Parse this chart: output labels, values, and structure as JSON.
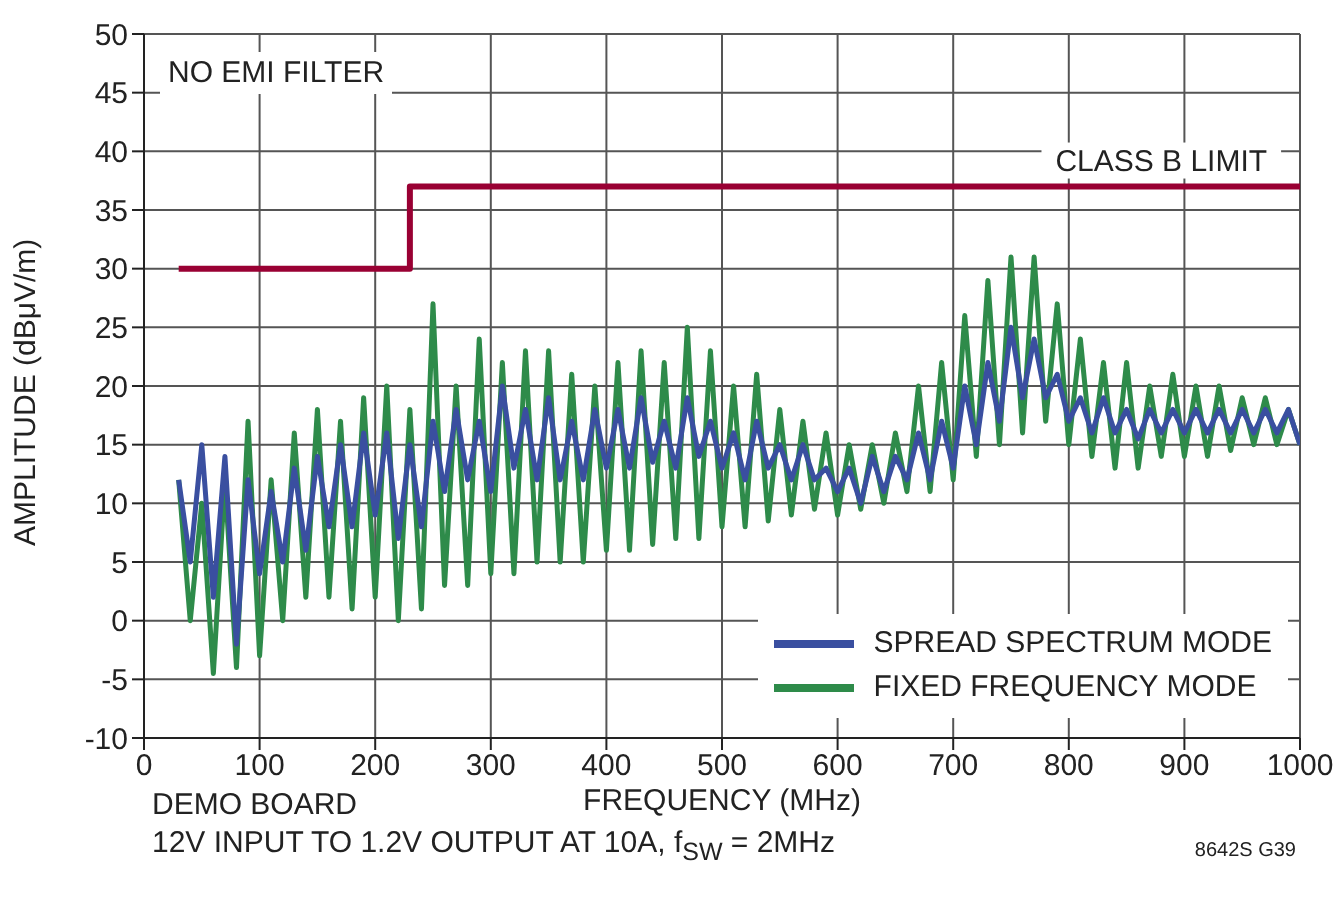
{
  "chart_data": {
    "type": "line",
    "xlabel": "FREQUENCY (MHz)",
    "ylabel": "AMPLITUDE (dBμV/m)",
    "xlim": [
      0,
      1000
    ],
    "xticks": [
      0,
      100,
      200,
      300,
      400,
      500,
      600,
      700,
      800,
      900,
      1000
    ],
    "ylim": [
      -10,
      50
    ],
    "yticks": [
      -10,
      -5,
      0,
      5,
      10,
      15,
      20,
      25,
      30,
      35,
      40,
      45,
      50
    ],
    "grid": true,
    "legend": "bottom right",
    "marker": "none",
    "line_style": "solid",
    "x": [
      30,
      40,
      50,
      60,
      70,
      80,
      90,
      100,
      110,
      120,
      130,
      140,
      150,
      160,
      170,
      180,
      190,
      200,
      210,
      220,
      230,
      240,
      250,
      260,
      270,
      280,
      290,
      300,
      310,
      320,
      330,
      340,
      350,
      360,
      370,
      380,
      390,
      400,
      410,
      420,
      430,
      440,
      450,
      460,
      470,
      480,
      490,
      500,
      510,
      520,
      530,
      540,
      550,
      560,
      570,
      580,
      590,
      600,
      610,
      620,
      630,
      640,
      650,
      660,
      670,
      680,
      690,
      700,
      710,
      720,
      730,
      740,
      750,
      760,
      770,
      780,
      790,
      800,
      810,
      820,
      830,
      840,
      850,
      860,
      870,
      880,
      890,
      900,
      910,
      920,
      930,
      940,
      950,
      960,
      970,
      980,
      990,
      1000
    ],
    "series": [
      {
        "name": "FIXED FREQUENCY MODE",
        "color": "#2e8b4a",
        "values": [
          12,
          0,
          10,
          -4.5,
          12,
          -4,
          17,
          -3,
          12,
          0,
          16,
          2,
          18,
          2,
          17,
          1,
          19,
          2,
          20,
          0,
          18,
          1,
          27,
          3,
          20,
          3,
          24,
          4,
          22,
          4,
          23,
          5,
          23,
          5,
          21,
          5,
          20,
          6,
          22,
          6,
          23,
          6.5,
          22,
          7,
          25,
          7,
          23,
          8,
          20,
          8,
          21,
          8.5,
          18,
          9,
          17,
          9.5,
          16,
          9,
          15,
          9.5,
          15,
          10,
          16,
          11,
          20,
          11,
          22,
          12,
          26,
          14,
          29,
          15,
          31,
          16,
          31,
          17,
          27,
          15,
          24,
          14,
          22,
          13,
          22,
          13,
          20,
          14,
          21,
          14,
          20,
          14,
          20,
          14.5,
          19,
          15,
          19,
          15,
          18,
          15
        ]
      },
      {
        "name": "SPREAD SPECTRUM MODE",
        "color": "#3a4fa0",
        "values": [
          12,
          5,
          15,
          2,
          14,
          -2,
          12,
          4,
          11,
          5,
          13,
          6,
          14,
          8,
          15,
          8,
          16,
          9,
          16,
          7,
          15,
          8,
          17,
          11,
          18,
          12,
          17,
          11,
          20,
          13,
          18,
          12,
          19,
          12,
          17,
          12,
          18,
          13,
          18,
          13,
          19,
          13.5,
          17,
          13,
          19,
          14,
          17,
          13,
          16,
          12,
          17,
          13,
          15,
          12,
          15,
          12,
          13,
          11,
          13,
          10,
          14,
          11,
          14,
          12,
          16,
          12,
          17,
          13,
          20,
          15,
          22,
          17,
          25,
          19,
          24,
          19,
          21,
          17,
          19,
          16,
          19,
          16,
          18,
          15.5,
          18,
          16,
          18,
          16,
          18,
          16,
          18,
          16,
          18,
          16,
          18,
          16,
          18,
          15
        ]
      },
      {
        "type": "step",
        "color": "#990033",
        "x": [
          30,
          230,
          1000
        ],
        "values": [
          30,
          37,
          37
        ]
      }
    ],
    "annotations": [
      "NO EMI FILTER",
      {
        "text": "CLASS B LIMIT",
        "x": 880,
        "y": 37
      },
      "DEMO BOARD",
      "12V INPUT TO 1.2V OUTPUT AT 10A, f$_{SW}$ = 2MHz",
      "8642S G39"
    ]
  }
}
